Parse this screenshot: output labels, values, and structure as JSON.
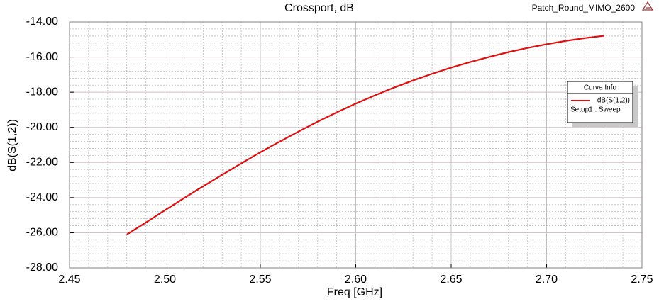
{
  "chart_data": {
    "type": "line",
    "title": "Crossport, dB",
    "project": "Patch_Round_MIMO_2600",
    "x_label": "Freq [GHz]",
    "y_label": "dB(S(1,2))",
    "legend_title": "Curve Info",
    "legend_subtitle": "Setup1 : Sweep",
    "grid": true,
    "minor_grid": true,
    "x": [
      2.48,
      2.49,
      2.5,
      2.51,
      2.52,
      2.53,
      2.54,
      2.55,
      2.56,
      2.57,
      2.58,
      2.59,
      2.6,
      2.61,
      2.62,
      2.63,
      2.64,
      2.65,
      2.66,
      2.67,
      2.68,
      2.69,
      2.7,
      2.71,
      2.72,
      2.73
    ],
    "series": [
      {
        "name": "dB(S(1,2))",
        "color": "#e01010",
        "values": [
          -26.1,
          -25.42,
          -24.72,
          -24.03,
          -23.36,
          -22.7,
          -22.05,
          -21.42,
          -20.82,
          -20.24,
          -19.68,
          -19.15,
          -18.65,
          -18.18,
          -17.74,
          -17.33,
          -16.95,
          -16.6,
          -16.28,
          -15.99,
          -15.72,
          -15.48,
          -15.27,
          -15.08,
          -14.92,
          -14.79
        ]
      }
    ],
    "xlim": [
      2.45,
      2.75
    ],
    "xticks": [
      2.45,
      {
        "value": 2.5,
        "label": "2.50"
      },
      2.55,
      {
        "value": 2.6,
        "label": "2.60"
      },
      2.65,
      {
        "value": 2.7,
        "label": "2.70"
      },
      2.75
    ],
    "ylim": [
      -28,
      -14
    ],
    "yticks": [
      {
        "value": -28,
        "label": "-28.00"
      },
      {
        "value": -26,
        "label": "-26.00"
      },
      {
        "value": -24,
        "label": "-24.00"
      },
      {
        "value": -22,
        "label": "-22.00"
      },
      {
        "value": -20,
        "label": "-20.00"
      },
      {
        "value": -18,
        "label": "-18.00"
      },
      {
        "value": -16,
        "label": "-16.00"
      },
      {
        "value": -14,
        "label": "-14.00"
      }
    ]
  }
}
